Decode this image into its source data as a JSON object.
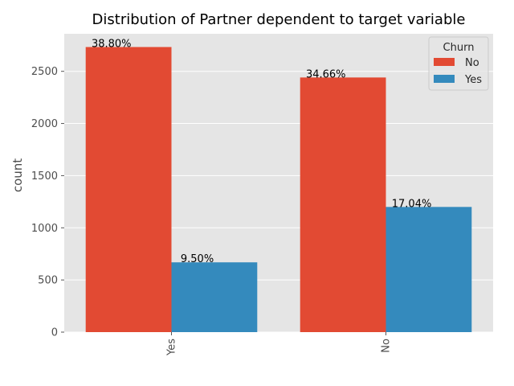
{
  "chart_data": {
    "type": "bar",
    "title": "Distribution of Partner dependent to target variable",
    "xlabel": "",
    "ylabel": "count",
    "categories": [
      "Yes",
      "No"
    ],
    "ylim": [
      0,
      2860
    ],
    "yticks": [
      0,
      500,
      1000,
      1500,
      2000,
      2500
    ],
    "grid": true,
    "legend": {
      "title": "Churn",
      "placement": "top-right"
    },
    "series": [
      {
        "name": "No",
        "color": "#E24A33",
        "values": [
          2733,
          2441
        ],
        "labels": [
          "38.80%",
          "34.66%"
        ]
      },
      {
        "name": "Yes",
        "color": "#348ABD",
        "values": [
          669,
          1200
        ],
        "labels": [
          "9.50%",
          "17.04%"
        ]
      }
    ],
    "style": {
      "background": "#E5E5E5",
      "grid_color": "#FFFFFF"
    }
  }
}
